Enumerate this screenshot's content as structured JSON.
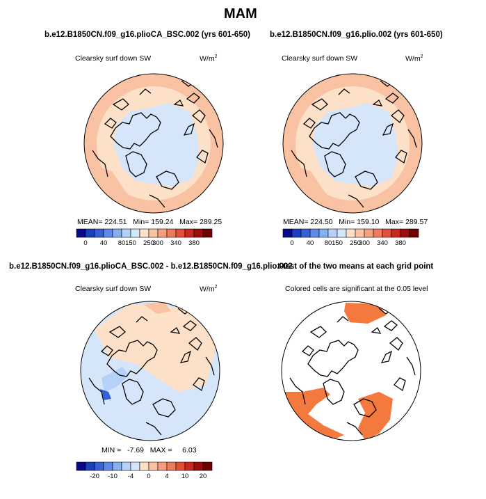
{
  "page": {
    "title": "MAM"
  },
  "panels": [
    {
      "id": "p1",
      "title": "b.e12.B1850CN.f09_g16.plioCA_BSC.002 (yrs 601-650)",
      "variable": "Clearsky surf down SW",
      "units": "W/m",
      "units_exp": "2",
      "stats": {
        "mean_label": "MEAN=",
        "mean": "224.51",
        "min_label": "Min=",
        "min": "159.24",
        "max_label": "Max=",
        "max": "289.25"
      }
    },
    {
      "id": "p2",
      "title": "b.e12.B1850CN.f09_g16.plio.002 (yrs 601-650)",
      "variable": "Clearsky surf down SW",
      "units": "W/m",
      "units_exp": "2",
      "stats": {
        "mean_label": "MEAN=",
        "mean": "224.50",
        "min_label": "Min=",
        "min": "159.10",
        "max_label": "Max=",
        "max": "289.57"
      }
    },
    {
      "id": "p3",
      "title": "b.e12.B1850CN.f09_g16.plioCA_BSC.002 - b.e12.B1850CN.f09_g16.plio.002",
      "variable": "Clearsky surf down SW",
      "units": "W/m",
      "units_exp": "2",
      "stats": {
        "min_label": "MIN =",
        "min": "-7.69",
        "max_label": "MAX =",
        "max": "6.03"
      }
    },
    {
      "id": "p4",
      "title": "t-test of the two means at each grid point",
      "variable": "Colored cells are significant at the 0.05 level"
    }
  ],
  "chart_data": [
    {
      "type": "heatmap",
      "title": "b.e12.B1850CN.f09_g16.plioCA_BSC.002 (yrs 601-650)",
      "projection": "north polar stereographic",
      "variable": "Clearsky surf down SW",
      "units": "W/m^2",
      "colorbar_labels": [
        "0",
        "40",
        "80",
        "150",
        "250",
        "300",
        "340",
        "380"
      ],
      "colorbar_colors": [
        "#08088a",
        "#1a3fbf",
        "#3560d6",
        "#5b8be6",
        "#86b0f0",
        "#b4d2f8",
        "#d6e6fa",
        "#fde0c8",
        "#f8c2a3",
        "#f49f7f",
        "#ee7b5a",
        "#e2503a",
        "#c8281f",
        "#9c0d0d",
        "#700000"
      ],
      "stats": {
        "mean": 224.51,
        "min": 159.24,
        "max": 289.25
      }
    },
    {
      "type": "heatmap",
      "title": "b.e12.B1850CN.f09_g16.plio.002 (yrs 601-650)",
      "projection": "north polar stereographic",
      "variable": "Clearsky surf down SW",
      "units": "W/m^2",
      "colorbar_labels": [
        "0",
        "40",
        "80",
        "150",
        "250",
        "300",
        "340",
        "380"
      ],
      "colorbar_colors": [
        "#08088a",
        "#1a3fbf",
        "#3560d6",
        "#5b8be6",
        "#86b0f0",
        "#b4d2f8",
        "#d6e6fa",
        "#fde0c8",
        "#f8c2a3",
        "#f49f7f",
        "#ee7b5a",
        "#e2503a",
        "#c8281f",
        "#9c0d0d",
        "#700000"
      ],
      "stats": {
        "mean": 224.5,
        "min": 159.1,
        "max": 289.57
      }
    },
    {
      "type": "heatmap",
      "title": "b.e12.B1850CN.f09_g16.plioCA_BSC.002 - b.e12.B1850CN.f09_g16.plio.002",
      "projection": "north polar stereographic",
      "variable": "Clearsky surf down SW",
      "units": "W/m^2",
      "colorbar_labels": [
        "-20",
        "-10",
        "-4",
        "0",
        "4",
        "10",
        "20"
      ],
      "colorbar_colors": [
        "#08088a",
        "#1a3fbf",
        "#3560d6",
        "#5b8be6",
        "#86b0f0",
        "#b4d2f8",
        "#d6e6fa",
        "#fde0c8",
        "#f8c2a3",
        "#f49f7f",
        "#ee7b5a",
        "#e2503a",
        "#c8281f",
        "#9c0d0d",
        "#700000"
      ],
      "stats": {
        "min": -7.69,
        "max": 6.03
      }
    },
    {
      "type": "heatmap",
      "title": "t-test of the two means at each grid point",
      "projection": "north polar stereographic",
      "variable": "Colored cells are significant at the 0.05 level",
      "significance_level": 0.05
    }
  ]
}
